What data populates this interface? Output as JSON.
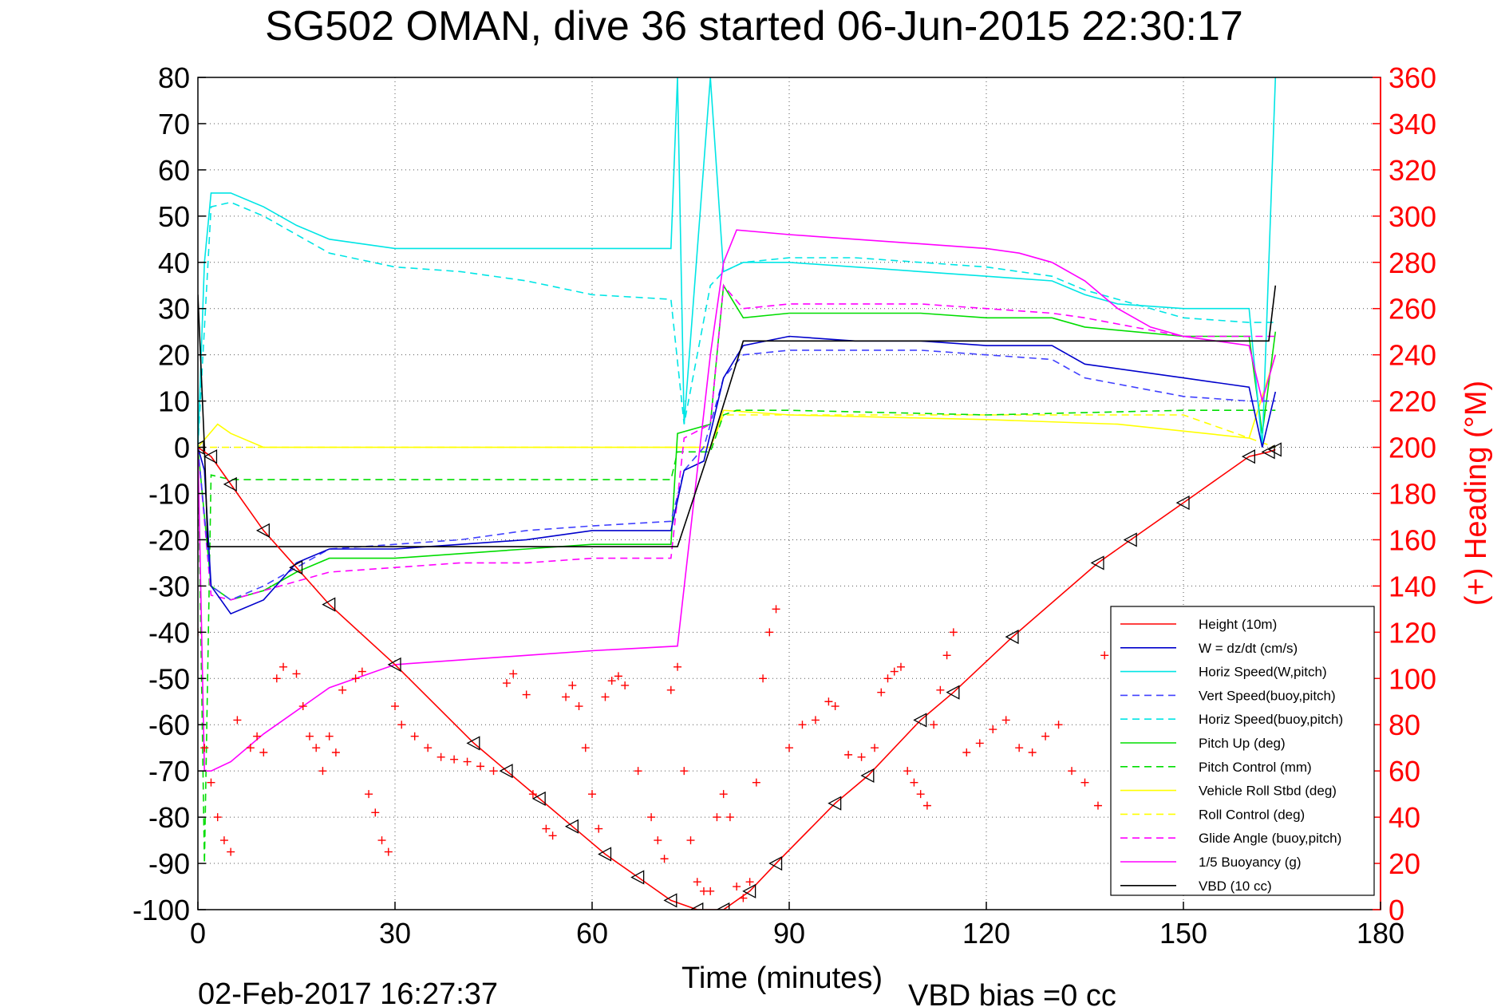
{
  "chart_data": {
    "type": "line",
    "title": "SG502 OMAN, dive 36 started 06-Jun-2015 22:30:17",
    "xlabel": "Time (minutes)",
    "ylabel_right": "(+) Heading (°M)",
    "timestamp": "02-Feb-2017 16:27:37",
    "vbd_bias": "VBD bias =0 cc",
    "xlim": [
      0,
      180
    ],
    "ylim": [
      -100,
      80
    ],
    "y2lim": [
      0,
      360
    ],
    "xticks": [
      0,
      30,
      60,
      90,
      120,
      150,
      180
    ],
    "yticks": [
      80,
      70,
      60,
      50,
      40,
      30,
      20,
      10,
      0,
      -10,
      -20,
      -30,
      -40,
      -50,
      -60,
      -70,
      -80,
      -90,
      -100
    ],
    "y2ticks": [
      360,
      340,
      320,
      300,
      280,
      260,
      240,
      220,
      200,
      180,
      160,
      140,
      120,
      100,
      80,
      60,
      40,
      20,
      0
    ],
    "grid": true,
    "legend_position": "bottom-right",
    "series": [
      {
        "name": "Height (10m)",
        "color": "#ff0000",
        "dash": "solid",
        "marker": "triangle",
        "x": [
          0,
          2,
          5,
          10,
          15,
          20,
          30,
          42,
          47,
          52,
          57,
          62,
          67,
          72,
          76,
          80,
          84,
          88,
          97,
          102,
          110,
          115,
          124,
          137,
          142,
          150,
          160,
          163,
          164
        ],
        "y": [
          0,
          -2,
          -8,
          -18,
          -26,
          -34,
          -47,
          -64,
          -70,
          -76,
          -82,
          -88,
          -93,
          -98,
          -100,
          -100,
          -96,
          -90,
          -77,
          -71,
          -59,
          -53,
          -41,
          -25,
          -20,
          -12,
          -2,
          -1,
          -0.5
        ]
      },
      {
        "name": "W = dz/dt (cm/s)",
        "color": "#0000cc",
        "dash": "solid",
        "marker": "none",
        "x": [
          0,
          1,
          2,
          5,
          10,
          15,
          20,
          30,
          40,
          50,
          60,
          72,
          74,
          77,
          80,
          83,
          90,
          100,
          110,
          120,
          130,
          135,
          150,
          160,
          162,
          164
        ],
        "y": [
          0,
          -5,
          -30,
          -36,
          -33,
          -25,
          -22,
          -22,
          -21,
          -20,
          -18,
          -18,
          -5,
          -3,
          15,
          22,
          24,
          23,
          23,
          22,
          22,
          18,
          15,
          13,
          0,
          12
        ]
      },
      {
        "name": "Horiz Speed(W,pitch)",
        "color": "#00e5e5",
        "dash": "solid",
        "marker": "none",
        "x": [
          0,
          1,
          2,
          5,
          10,
          15,
          20,
          30,
          40,
          50,
          60,
          72,
          73,
          74,
          78,
          80,
          83,
          90,
          100,
          110,
          120,
          130,
          135,
          140,
          150,
          160,
          162,
          164
        ],
        "y": [
          0,
          40,
          55,
          55,
          52,
          48,
          45,
          43,
          43,
          43,
          43,
          43,
          80,
          5,
          80,
          38,
          40,
          40,
          39,
          38,
          37,
          36,
          33,
          31,
          30,
          30,
          0,
          80
        ]
      },
      {
        "name": "Vert Speed(buoy,pitch)",
        "color": "#4040ff",
        "dash": "dashed",
        "marker": "none",
        "x": [
          0,
          2,
          5,
          10,
          20,
          30,
          40,
          50,
          60,
          72,
          74,
          77,
          80,
          83,
          90,
          100,
          110,
          120,
          130,
          135,
          150,
          160,
          164
        ],
        "y": [
          0,
          -30,
          -33,
          -30,
          -22,
          -21,
          -20,
          -18,
          -17,
          -16,
          -5,
          0,
          15,
          20,
          21,
          21,
          21,
          20,
          19,
          15,
          11,
          10,
          10
        ]
      },
      {
        "name": "Horiz Speed(buoy,pitch)",
        "color": "#00e5e5",
        "dash": "dashed",
        "marker": "none",
        "x": [
          0,
          2,
          5,
          10,
          20,
          30,
          40,
          50,
          60,
          72,
          74,
          78,
          80,
          83,
          90,
          100,
          110,
          120,
          130,
          135,
          150,
          160,
          164
        ],
        "y": [
          0,
          52,
          53,
          50,
          42,
          39,
          38,
          36,
          33,
          32,
          5,
          35,
          38,
          40,
          41,
          41,
          40,
          39,
          37,
          34,
          28,
          27,
          27
        ]
      },
      {
        "name": "Pitch Up (deg)",
        "color": "#00dd00",
        "dash": "solid",
        "marker": "none",
        "x": [
          0,
          2,
          5,
          10,
          15,
          20,
          30,
          40,
          50,
          60,
          72,
          73,
          78,
          80,
          83,
          90,
          100,
          110,
          120,
          130,
          135,
          150,
          160,
          162,
          164
        ],
        "y": [
          0,
          -30,
          -33,
          -31,
          -27,
          -24,
          -24,
          -23,
          -22,
          -21,
          -21,
          3,
          5,
          35,
          28,
          29,
          29,
          29,
          28,
          28,
          26,
          24,
          24,
          3,
          25
        ]
      },
      {
        "name": "Pitch Control (mm)",
        "color": "#00dd00",
        "dash": "dashed",
        "marker": "none",
        "x": [
          0,
          1,
          2,
          5,
          20,
          40,
          60,
          72,
          73,
          78,
          80,
          82,
          90,
          120,
          150,
          164
        ],
        "y": [
          0,
          -90,
          -6,
          -7,
          -7,
          -7,
          -7,
          -7,
          -1,
          -1,
          7,
          8,
          8,
          7,
          8,
          8
        ]
      },
      {
        "name": "Vehicle Roll Stbd (deg)",
        "color": "#ffff00",
        "dash": "solid",
        "marker": "none",
        "x": [
          0,
          3,
          5,
          10,
          20,
          40,
          60,
          72,
          74,
          78,
          80,
          90,
          120,
          140,
          160,
          164
        ],
        "y": [
          0,
          5,
          3,
          0,
          0,
          0,
          0,
          0,
          0,
          0,
          8,
          7,
          6,
          5,
          2,
          20
        ]
      },
      {
        "name": "Roll Control (deg)",
        "color": "#ffff00",
        "dash": "dashed",
        "marker": "none",
        "x": [
          0,
          3,
          10,
          20,
          40,
          60,
          72,
          78,
          80,
          90,
          120,
          150,
          164
        ],
        "y": [
          0,
          0,
          0,
          0,
          0,
          0,
          0,
          0,
          7,
          7,
          7,
          7,
          0
        ]
      },
      {
        "name": "Glide Angle (buoy,pitch)",
        "color": "#ff00ff",
        "dash": "dashed",
        "marker": "none",
        "x": [
          0,
          2,
          5,
          10,
          20,
          30,
          40,
          50,
          60,
          72,
          74,
          78,
          80,
          83,
          90,
          100,
          110,
          120,
          130,
          135,
          150,
          160,
          164
        ],
        "y": [
          0,
          -32,
          -33,
          -31,
          -27,
          -26,
          -25,
          -25,
          -24,
          -24,
          2,
          5,
          35,
          30,
          31,
          31,
          31,
          30,
          29,
          28,
          24,
          24,
          24
        ]
      },
      {
        "name": "1/5 Buoyancy (g)",
        "color": "#ff00ff",
        "dash": "solid",
        "marker": "none",
        "x": [
          0,
          1,
          2,
          5,
          10,
          20,
          30,
          40,
          50,
          60,
          73,
          78,
          80,
          82,
          90,
          100,
          110,
          120,
          125,
          130,
          135,
          140,
          145,
          150,
          160,
          162,
          164
        ],
        "y": [
          0,
          -70,
          -70,
          -68,
          -62,
          -52,
          -47,
          -46,
          -45,
          -44,
          -43,
          20,
          40,
          47,
          46,
          45,
          44,
          43,
          42,
          40,
          36,
          30,
          26,
          24,
          22,
          10,
          20
        ]
      },
      {
        "name": "VBD (10 cc)",
        "color": "#000000",
        "dash": "solid",
        "marker": "none",
        "x": [
          0,
          1,
          1.5,
          20,
          40,
          60,
          73,
          78,
          83,
          90,
          120,
          150,
          160,
          163,
          164
        ],
        "y": [
          33,
          0,
          -21.5,
          -21.5,
          -21.5,
          -21.5,
          -21.5,
          0,
          23,
          23,
          23,
          23,
          23,
          23,
          35
        ]
      },
      {
        "name": "Heading",
        "color": "#ff0000",
        "dash": "none",
        "marker": "plus",
        "axis": "right",
        "x": [
          0,
          1,
          2,
          3,
          4,
          5,
          6,
          8,
          9,
          10,
          12,
          13,
          15,
          16,
          17,
          18,
          19,
          20,
          21,
          22,
          24,
          25,
          26,
          27,
          28,
          29,
          30,
          31,
          33,
          35,
          37,
          39,
          41,
          43,
          45,
          47,
          48,
          50,
          51,
          53,
          54,
          56,
          57,
          58,
          59,
          60,
          61,
          62,
          63,
          64,
          65,
          67,
          69,
          70,
          71,
          72,
          73,
          74,
          75,
          76,
          77,
          78,
          79,
          80,
          81,
          82,
          83,
          84,
          85,
          86,
          87,
          88,
          90,
          92,
          94,
          96,
          97,
          99,
          101,
          103,
          104,
          105,
          106,
          107,
          108,
          109,
          110,
          111,
          112,
          113,
          114,
          115,
          117,
          119,
          121,
          123,
          125,
          127,
          129,
          131,
          133,
          135,
          137,
          138
        ],
        "y": [
          120,
          70,
          55,
          40,
          30,
          25,
          82,
          70,
          75,
          68,
          100,
          105,
          102,
          88,
          75,
          70,
          60,
          75,
          68,
          95,
          100,
          103,
          50,
          42,
          30,
          25,
          88,
          80,
          75,
          70,
          66,
          65,
          64,
          62,
          60,
          98,
          102,
          93,
          50,
          35,
          32,
          92,
          97,
          88,
          70,
          50,
          35,
          92,
          99,
          101,
          97,
          60,
          40,
          30,
          22,
          95,
          105,
          60,
          30,
          12,
          8,
          8,
          40,
          50,
          40,
          10,
          5,
          12,
          55,
          100,
          120,
          130,
          70,
          80,
          82,
          90,
          88,
          67,
          66,
          70,
          94,
          100,
          103,
          105,
          60,
          55,
          50,
          45,
          80,
          95,
          110,
          120,
          68,
          72,
          78,
          82,
          70,
          68,
          75,
          80,
          60,
          55,
          45,
          110
        ]
      }
    ]
  }
}
